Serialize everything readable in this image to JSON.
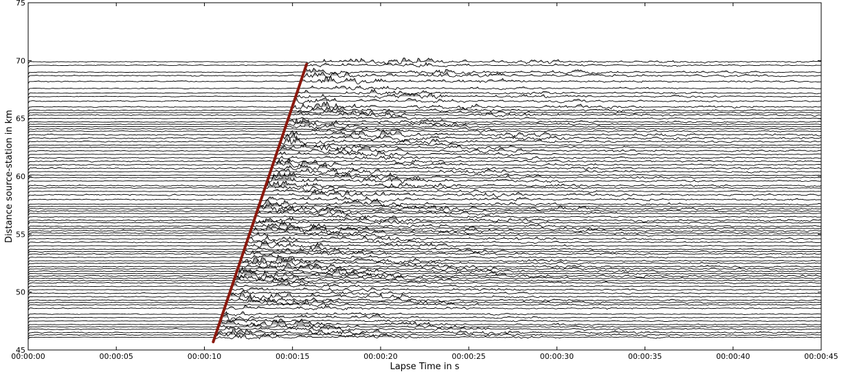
{
  "chart_data": {
    "type": "seismic-record-section",
    "xlabel": "Lapse Time in s",
    "ylabel": "Distance source-station in km",
    "x_ticks": [
      "00:00:00",
      "00:00:05",
      "00:00:10",
      "00:00:15",
      "00:00:20",
      "00:00:25",
      "00:00:30",
      "00:00:35",
      "00:00:40",
      "00:00:45"
    ],
    "x_tick_values": [
      0,
      5,
      10,
      15,
      20,
      25,
      30,
      35,
      40,
      45
    ],
    "xlim": [
      0,
      45
    ],
    "y_ticks": [
      "45",
      "50",
      "55",
      "60",
      "65",
      "70",
      "75"
    ],
    "y_tick_values": [
      45,
      50,
      55,
      60,
      65,
      70,
      75
    ],
    "ylim": [
      45,
      75
    ],
    "trace_color": "#000000",
    "fill_color": "#a6a6a6",
    "moveout_line": {
      "color": "#8b1a0f",
      "x": [
        10.5,
        15.8
      ],
      "y": [
        45.7,
        69.7
      ]
    },
    "trace_offsets_km": [
      46.1,
      46.3,
      46.5,
      46.8,
      47.0,
      47.2,
      47.5,
      47.8,
      48.1,
      48.6,
      48.9,
      49.1,
      49.3,
      49.6,
      49.9,
      50.2,
      50.5,
      50.8,
      51.0,
      51.2,
      51.4,
      51.6,
      51.8,
      52.0,
      52.2,
      52.5,
      52.7,
      53.0,
      53.3,
      53.5,
      53.7,
      54.0,
      54.3,
      54.6,
      54.9,
      55.1,
      55.3,
      55.5,
      55.7,
      56.0,
      56.2,
      56.5,
      56.8,
      57.0,
      57.2,
      57.4,
      57.6,
      58.0,
      58.4,
      58.7,
      59.0,
      59.2,
      59.6,
      59.9,
      60.1,
      60.4,
      60.7,
      61.0,
      61.3,
      61.6,
      61.9,
      62.2,
      62.5,
      62.7,
      63.0,
      63.3,
      63.6,
      63.9,
      64.1,
      64.3,
      64.5,
      64.7,
      65.0,
      65.3,
      65.5,
      65.7,
      66.0,
      66.5,
      66.9,
      67.2,
      67.6,
      68.2,
      68.7,
      69.0,
      69.6,
      69.9
    ]
  }
}
